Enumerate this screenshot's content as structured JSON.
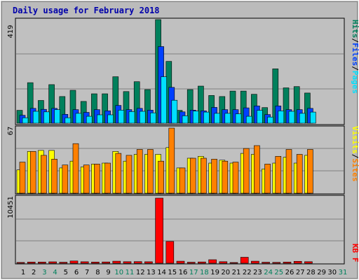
{
  "chart_data": {
    "type": "bar",
    "title": "Daily usage for February 2018",
    "days": [
      "1",
      "2",
      "3",
      "4",
      "5",
      "6",
      "7",
      "8",
      "9",
      "10",
      "11",
      "12",
      "13",
      "14",
      "15",
      "16",
      "17",
      "18",
      "19",
      "20",
      "21",
      "22",
      "23",
      "24",
      "25",
      "26",
      "27",
      "28",
      "29",
      "30",
      "31"
    ],
    "weekend_days": [
      "3",
      "4",
      "10",
      "11",
      "17",
      "18",
      "24",
      "25",
      "31"
    ],
    "colors": {
      "hits": "#00805c",
      "files": "#0040ff",
      "pages": "#00e0ff",
      "visits": "#ffff00",
      "sites": "#ff8000",
      "kbytes": "#ff0000",
      "weekday_label": "#000000",
      "weekend_label": "#00805c"
    },
    "panels": [
      {
        "id": "hits-panel",
        "ymax_label": "419",
        "ymax": 419,
        "legend": [
          {
            "text": "Pages",
            "color": "#00e0ff"
          },
          {
            "text": "/",
            "color": "#000000"
          },
          {
            "text": "Files",
            "color": "#0040ff"
          },
          {
            "text": "/",
            "color": "#000000"
          },
          {
            "text": "Hits",
            "color": "#00805c"
          }
        ],
        "series": [
          {
            "name": "Hits",
            "color": "#00805c",
            "values": [
              52,
              164,
              92,
              156,
              108,
              133,
              88,
              119,
              119,
              188,
              128,
              168,
              136,
              419,
              250,
              52,
              136,
              150,
              112,
              108,
              130,
              130,
              117,
              63,
              220,
              143,
              148,
              122,
              0,
              0,
              0
            ]
          },
          {
            "name": "Files",
            "color": "#0040ff",
            "values": [
              32,
              60,
              56,
              60,
              36,
              55,
              44,
              55,
              50,
              72,
              55,
              60,
              53,
              310,
              145,
              46,
              53,
              50,
              64,
              55,
              55,
              62,
              70,
              35,
              70,
              55,
              55,
              60,
              0,
              0,
              0
            ]
          },
          {
            "name": "Pages",
            "color": "#00e0ff",
            "values": [
              22,
              48,
              46,
              55,
              22,
              40,
              28,
              34,
              34,
              53,
              47,
              48,
              42,
              188,
              93,
              30,
              49,
              45,
              40,
              40,
              38,
              28,
              52,
              25,
              50,
              48,
              40,
              45,
              0,
              0,
              0
            ]
          }
        ]
      },
      {
        "id": "visits-panel",
        "ymax_label": "67",
        "ymax": 67,
        "legend": [
          {
            "text": "Sites",
            "color": "#ff8000"
          },
          {
            "text": "/",
            "color": "#000000"
          },
          {
            "text": "Visits",
            "color": "#ffff00"
          }
        ],
        "series": [
          {
            "name": "Visits",
            "color": "#ffff00",
            "values": [
              24,
              43,
              44,
              44,
              26,
              33,
              27,
              30,
              31,
              43,
              33,
              40,
              40,
              40,
              47,
              26,
              36,
              38,
              31,
              34,
              31,
              41,
              40,
              25,
              31,
              37,
              31,
              39,
              0,
              0,
              0
            ]
          },
          {
            "name": "Sites",
            "color": "#ff8000",
            "values": [
              32,
              43,
              39,
              35,
              29,
              51,
              29,
              30,
              31,
              41,
              39,
              45,
              45,
              33,
              67,
              26,
              36,
              36,
              35,
              33,
              32,
              46,
              49,
              30,
              38,
              45,
              40,
              45,
              0,
              0,
              0
            ]
          }
        ]
      },
      {
        "id": "kb-panel",
        "ymax_label": "10451",
        "ymax": 10451,
        "legend": [
          {
            "text": "KB F",
            "color": "#ff0000"
          }
        ],
        "series": [
          {
            "name": "KB F",
            "color": "#ff0000",
            "values": [
              120,
              180,
              180,
              220,
              160,
              360,
              240,
              180,
              200,
              330,
              250,
              260,
              240,
              10451,
              3500,
              330,
              160,
              200,
              560,
              250,
              110,
              960,
              330,
              160,
              140,
              180,
              300,
              250,
              0,
              0,
              0
            ]
          }
        ]
      }
    ]
  }
}
